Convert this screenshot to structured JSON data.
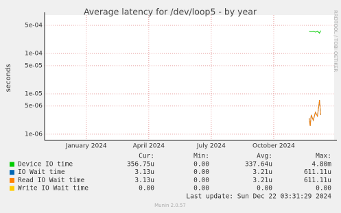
{
  "chart_data": {
    "type": "line",
    "title": "Average latency for /dev/loop5 - by year",
    "y_label": "seconds",
    "y_log": true,
    "grid": true,
    "ylim": [
      7e-07,
      0.0009
    ],
    "yticks": [
      {
        "value": 0.0005,
        "label": "5e-04"
      },
      {
        "value": 0.0001,
        "label": "1e-04"
      },
      {
        "value": 5e-05,
        "label": "5e-05"
      },
      {
        "value": 1e-05,
        "label": "1e-05"
      },
      {
        "value": 5e-06,
        "label": "5e-06"
      },
      {
        "value": 1e-06,
        "label": "1e-06"
      }
    ],
    "xlim": [
      -2,
      11.9
    ],
    "xticks": [
      {
        "value": 0,
        "label": "January 2024"
      },
      {
        "value": 3,
        "label": "April 2024"
      },
      {
        "value": 6,
        "label": "July 2024"
      },
      {
        "value": 9,
        "label": "October 2024"
      }
    ],
    "series": [
      {
        "name": "Device IO time",
        "color": "#00cc00",
        "x": [
          10.7,
          10.8,
          10.9,
          11.0,
          11.1,
          11.2,
          11.25
        ],
        "values": [
          0.00036,
          0.00035,
          0.00036,
          0.00034,
          0.00036,
          0.00032,
          0.00037
        ]
      },
      {
        "name": "IO Wait time",
        "color": "#0066b3",
        "x": [
          10.7,
          10.75,
          10.8,
          10.9,
          11.0,
          11.1,
          11.2,
          11.25
        ],
        "values": [
          2.5e-06,
          1.6e-06,
          3e-06,
          2.2e-06,
          3.5e-06,
          2.8e-06,
          7e-06,
          3e-06
        ]
      },
      {
        "name": "Read IO Wait time",
        "color": "#ff8000",
        "x": [
          10.7,
          10.75,
          10.8,
          10.9,
          11.0,
          11.1,
          11.2,
          11.25
        ],
        "values": [
          2.5e-06,
          1.6e-06,
          3e-06,
          2.2e-06,
          3.5e-06,
          2.8e-06,
          7e-06,
          3e-06
        ]
      },
      {
        "name": "Write IO Wait time",
        "color": "#ffcc00",
        "x": [],
        "values": []
      }
    ],
    "legend_stats": {
      "headers": [
        "Cur:",
        "Min:",
        "Avg:",
        "Max:"
      ],
      "rows": [
        [
          "356.75u",
          "0.00",
          "337.64u",
          "4.80m"
        ],
        [
          "3.13u",
          "0.00",
          "3.21u",
          "611.11u"
        ],
        [
          "3.13u",
          "0.00",
          "3.21u",
          "611.11u"
        ],
        [
          "0.00",
          "0.00",
          "0.00",
          "0.00"
        ]
      ]
    },
    "last_update": "Last update: Sun Dec 22 03:31:29 2024",
    "footer": "Munin 2.0.57",
    "side_text": "RRDTOOL / TOBI OETIKER"
  }
}
